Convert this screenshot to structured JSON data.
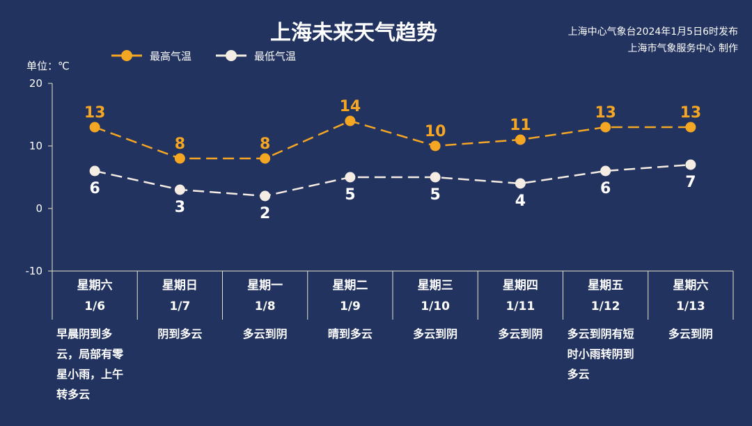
{
  "header": {
    "title": "上海未来天气趋势",
    "issuer_line1": "上海中心气象台2024年1月5日6时发布",
    "issuer_line2": "上海市气象服务中心 制作"
  },
  "unit_label": "单位：℃",
  "colors": {
    "background": "#22335f",
    "high": "#f5a623",
    "low": "#f5ece3",
    "axis": "#e8e4c8"
  },
  "days": [
    {
      "weekday": "星期六",
      "date": "1/6",
      "desc": "早晨阴到多云，局部有零星小雨，上午转多云"
    },
    {
      "weekday": "星期日",
      "date": "1/7",
      "desc": "阴到多云"
    },
    {
      "weekday": "星期一",
      "date": "1/8",
      "desc": "多云到阴"
    },
    {
      "weekday": "星期二",
      "date": "1/9",
      "desc": "晴到多云"
    },
    {
      "weekday": "星期三",
      "date": "1/10",
      "desc": "多云到阴"
    },
    {
      "weekday": "星期四",
      "date": "1/11",
      "desc": "多云到阴"
    },
    {
      "weekday": "星期五",
      "date": "1/12",
      "desc": "多云到阴有短时小雨转阴到多云"
    },
    {
      "weekday": "星期六",
      "date": "1/13",
      "desc": "多云到阴"
    }
  ],
  "chart_data": {
    "type": "line",
    "title": "上海未来天气趋势",
    "ylabel": "单位：℃",
    "ylim": [
      -10,
      20
    ],
    "yticks": [
      "20",
      "10",
      "0",
      "-10"
    ],
    "categories": [
      "1/6",
      "1/7",
      "1/8",
      "1/9",
      "1/10",
      "1/11",
      "1/12",
      "1/13"
    ],
    "legend_position": "top-left",
    "series": [
      {
        "name": "最高气温",
        "values": [
          13,
          8,
          8,
          14,
          10,
          11,
          13,
          13
        ],
        "labels": [
          "13",
          "8",
          "8",
          "14",
          "10",
          "11",
          "13",
          "13"
        ]
      },
      {
        "name": "最低气温",
        "values": [
          6,
          3,
          2,
          5,
          5,
          4,
          6,
          7
        ],
        "labels": [
          "6",
          "3",
          "2",
          "5",
          "5",
          "4",
          "6",
          "7"
        ]
      }
    ]
  }
}
